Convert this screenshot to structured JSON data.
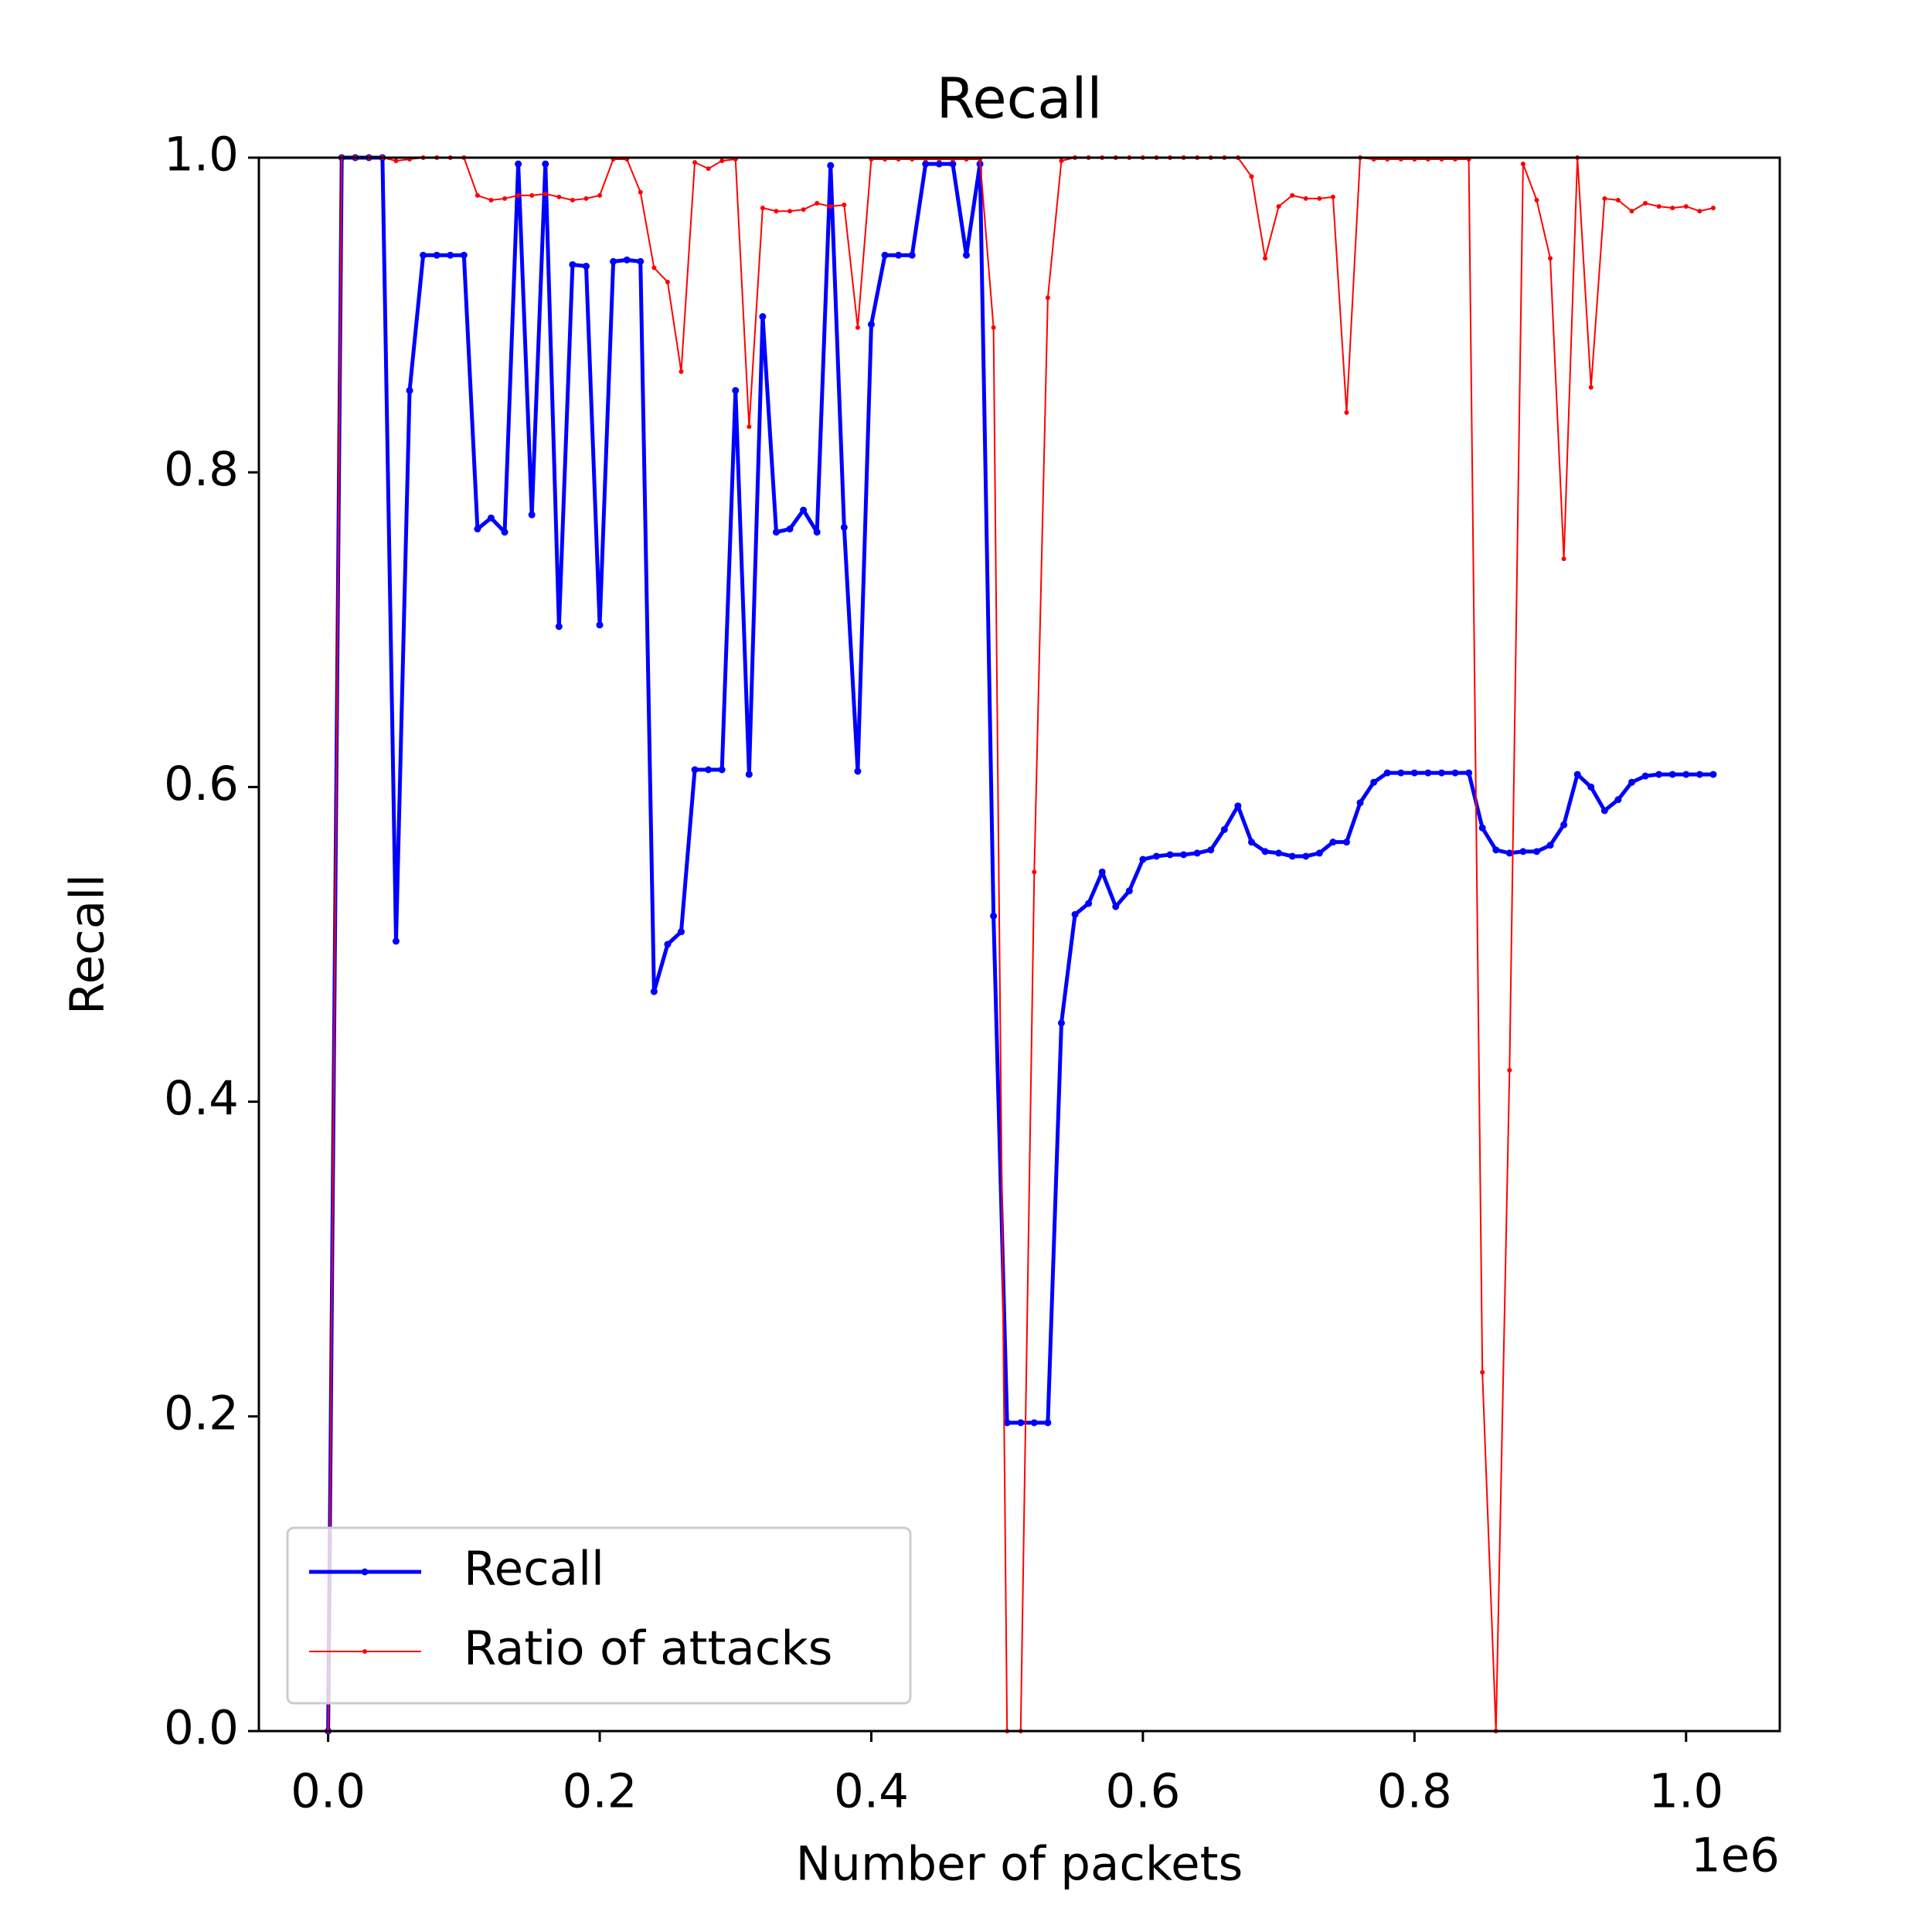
{
  "chart_data": {
    "type": "line",
    "title": "Recall",
    "xlabel": "Number of packets",
    "ylabel": "Recall",
    "x_offset_label": "1e6",
    "x": [
      0,
      10000,
      20000,
      30000,
      40000,
      50000,
      60000,
      70000,
      80000,
      90000,
      100000,
      110000,
      120000,
      130000,
      140000,
      150000,
      160000,
      170000,
      180000,
      190000,
      200000,
      210000,
      220000,
      230000,
      240000,
      250000,
      260000,
      270000,
      280000,
      290000,
      300000,
      310000,
      320000,
      330000,
      340000,
      350000,
      360000,
      370000,
      380000,
      390000,
      400000,
      410000,
      420000,
      430000,
      440000,
      450000,
      460000,
      470000,
      480000,
      490000,
      500000,
      510000,
      520000,
      530000,
      540000,
      550000,
      560000,
      570000,
      580000,
      590000,
      600000,
      610000,
      620000,
      630000,
      640000,
      650000,
      660000,
      670000,
      680000,
      690000,
      700000,
      710000,
      720000,
      730000,
      740000,
      750000,
      760000,
      770000,
      780000,
      790000,
      800000,
      810000,
      820000,
      830000,
      840000,
      850000,
      860000,
      870000,
      880000,
      890000,
      900000,
      910000,
      920000,
      930000,
      940000,
      950000,
      960000,
      970000,
      980000,
      990000,
      1000000,
      1010000,
      1020000
    ],
    "series": [
      {
        "name": "Recall",
        "color": "#0000ff",
        "values": [
          0,
          1,
          1,
          1,
          1,
          0.502,
          0.852,
          0.938,
          0.938,
          0.938,
          0.938,
          0.764,
          0.771,
          0.762,
          0.996,
          0.773,
          0.996,
          0.702,
          0.932,
          0.931,
          0.703,
          0.934,
          0.935,
          0.934,
          0.47,
          0.5,
          0.508,
          0.611,
          0.611,
          0.611,
          0.852,
          0.608,
          0.899,
          0.762,
          0.764,
          0.776,
          0.762,
          0.995,
          0.765,
          0.61,
          0.894,
          0.938,
          0.938,
          0.938,
          0.996,
          0.996,
          0.996,
          0.938,
          0.996,
          0.518,
          0.196,
          0.196,
          0.196,
          0.196,
          0.45,
          0.519,
          0.526,
          0.546,
          0.524,
          0.534,
          0.554,
          0.556,
          0.557,
          0.557,
          0.558,
          0.56,
          0.573,
          0.588,
          0.565,
          0.559,
          0.558,
          0.556,
          0.556,
          0.558,
          0.565,
          0.565,
          0.59,
          0.603,
          0.609,
          0.609,
          0.609,
          0.609,
          0.609,
          0.609,
          0.609,
          0.574,
          0.56,
          0.558,
          0.559,
          0.559,
          0.563,
          0.576,
          0.608,
          0.6,
          0.585,
          0.592,
          0.603,
          0.607,
          0.608,
          0.608,
          0.608,
          0.608,
          0.608
        ]
      },
      {
        "name": "Ratio of attacks",
        "color": "#ff0000",
        "values": [
          0,
          1,
          1,
          1,
          1,
          0.998,
          0.999,
          1,
          1,
          1,
          1,
          0.976,
          0.973,
          0.974,
          0.976,
          0.976,
          0.977,
          0.975,
          0.973,
          0.974,
          0.976,
          0.999,
          0.999,
          0.978,
          0.93,
          0.921,
          0.864,
          0.997,
          0.993,
          0.998,
          0.999,
          0.829,
          0.968,
          0.966,
          0.966,
          0.967,
          0.971,
          0.969,
          0.97,
          0.892,
          0.999,
          0.999,
          0.999,
          0.999,
          0.999,
          0.999,
          0.999,
          0.999,
          0.999,
          0.892,
          0,
          0,
          0.546,
          0.911,
          0.998,
          1,
          1,
          1,
          1,
          1,
          1,
          1,
          1,
          1,
          1,
          1,
          1,
          1,
          0.988,
          0.936,
          0.969,
          0.976,
          0.974,
          0.974,
          0.975,
          0.838,
          1,
          0.999,
          0.999,
          0.999,
          0.999,
          0.999,
          0.999,
          0.999,
          0.999,
          0.228,
          0,
          0.42,
          0.996,
          0.973,
          0.936,
          0.745,
          1,
          0.854,
          0.974,
          0.973,
          0.966,
          0.971,
          0.969,
          0.968,
          0.969,
          0.966,
          0.968
        ]
      }
    ],
    "xlim": [
      -51000,
      1069000
    ],
    "ylim": [
      0,
      1
    ],
    "xticks": [
      {
        "value": 0,
        "label": "0.0"
      },
      {
        "value": 200000,
        "label": "0.2"
      },
      {
        "value": 400000,
        "label": "0.4"
      },
      {
        "value": 600000,
        "label": "0.6"
      },
      {
        "value": 800000,
        "label": "0.8"
      },
      {
        "value": 1000000,
        "label": "1.0"
      }
    ],
    "yticks": [
      {
        "value": 0,
        "label": "0.0"
      },
      0.2,
      0.4,
      0.6,
      0.8,
      {
        "value": 1,
        "label": "1.0"
      }
    ],
    "legend": "lower left",
    "grid": false
  }
}
